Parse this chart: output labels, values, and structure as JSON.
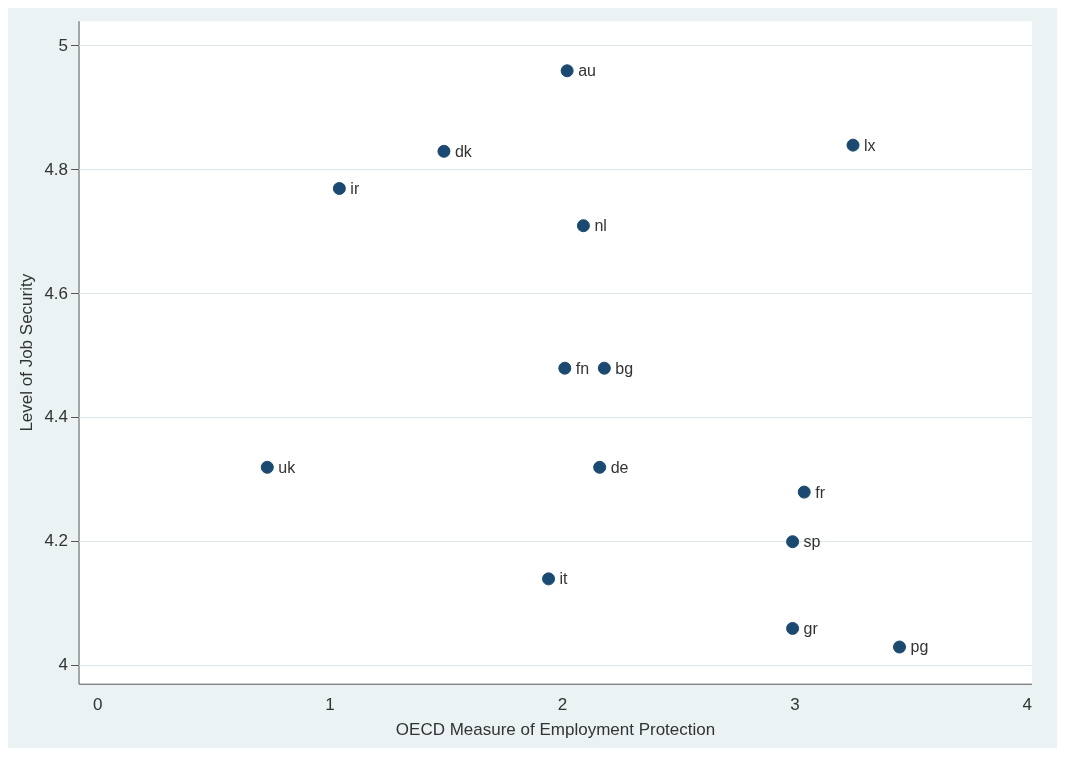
{
  "chart_data": {
    "type": "scatter",
    "xlabel": "OECD Measure of Employment Protection",
    "ylabel": "Level of Job Security",
    "x": [
      2.02,
      1.49,
      3.25,
      1.04,
      2.09,
      2.01,
      2.18,
      0.73,
      2.16,
      3.04,
      2.99,
      1.94,
      2.99,
      3.45
    ],
    "series": [
      {
        "color": "#1a4a72",
        "values": [
          4.96,
          4.83,
          4.84,
          4.77,
          4.71,
          4.48,
          4.48,
          4.32,
          4.32,
          4.28,
          4.2,
          4.14,
          4.06,
          4.03
        ]
      }
    ],
    "annotations": [
      {
        "text": "au",
        "x": 2.02,
        "y": 4.96
      },
      {
        "text": "dk",
        "x": 1.49,
        "y": 4.83
      },
      {
        "text": "lx",
        "x": 3.25,
        "y": 4.84
      },
      {
        "text": "ir",
        "x": 1.04,
        "y": 4.77
      },
      {
        "text": "nl",
        "x": 2.09,
        "y": 4.71
      },
      {
        "text": "fn",
        "x": 2.01,
        "y": 4.48
      },
      {
        "text": "bg",
        "x": 2.18,
        "y": 4.48
      },
      {
        "text": "uk",
        "x": 0.73,
        "y": 4.32
      },
      {
        "text": "de",
        "x": 2.16,
        "y": 4.32
      },
      {
        "text": "fr",
        "x": 3.04,
        "y": 4.28
      },
      {
        "text": "sp",
        "x": 2.99,
        "y": 4.2
      },
      {
        "text": "it",
        "x": 1.94,
        "y": 4.14
      },
      {
        "text": "gr",
        "x": 2.99,
        "y": 4.06
      },
      {
        "text": "pg",
        "x": 3.45,
        "y": 4.03
      }
    ],
    "xlim": [
      -0.08,
      4.02
    ],
    "ylim": [
      3.97,
      5.04
    ],
    "xticks": [
      0,
      1,
      2,
      3,
      4
    ],
    "yticks": [
      4,
      4.2,
      4.4,
      4.6,
      4.8,
      5
    ],
    "grid": "y",
    "marker": "circle",
    "legend": false
  }
}
